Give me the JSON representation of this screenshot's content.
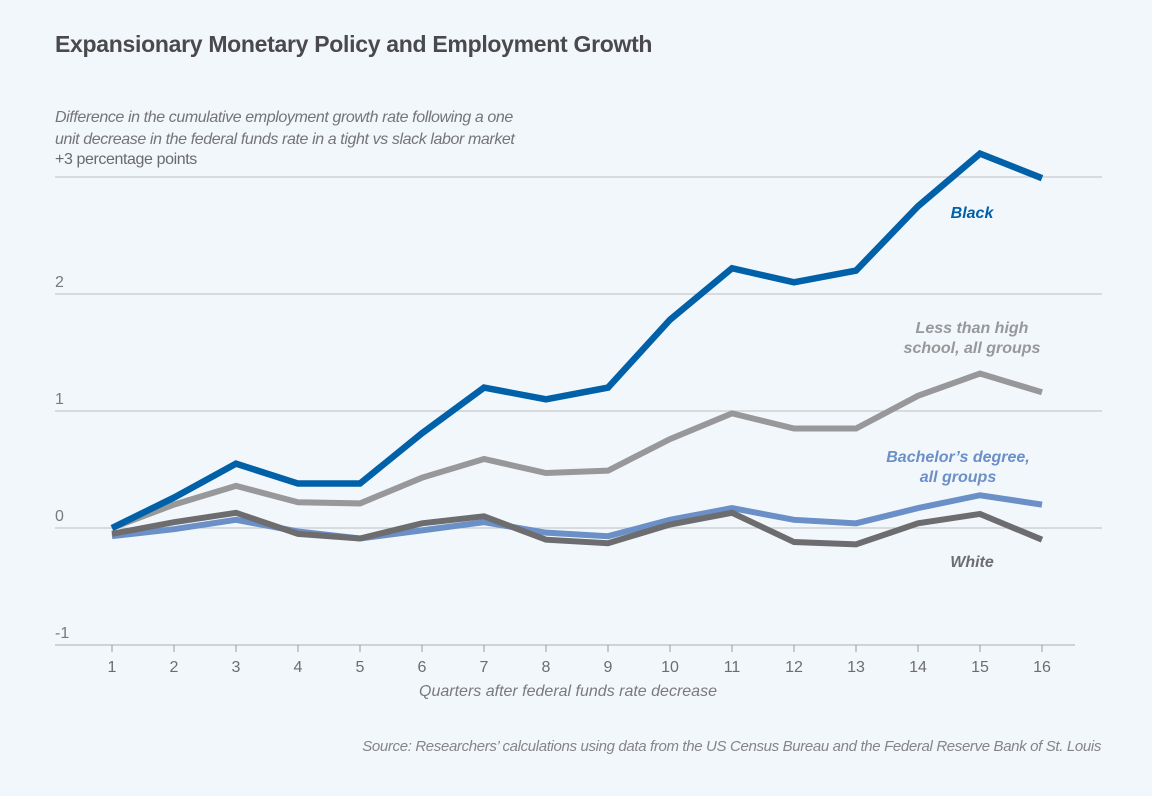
{
  "chart_data": {
    "type": "line",
    "title": "Expansionary Monetary Policy and Employment Growth",
    "subtitle": "Difference in the cumulative employment growth rate following a one unit decrease in the federal funds rate in a tight vs slack labor market",
    "subtitle_lines": [
      "Difference in the cumulative employment growth rate following a one",
      "unit decrease in the federal funds rate in a tight vs slack labor market"
    ],
    "units_label": "+3 percentage points",
    "xlabel": "Quarters after federal funds rate decrease",
    "ylabel": "",
    "x": [
      1,
      2,
      3,
      4,
      5,
      6,
      7,
      8,
      9,
      10,
      11,
      12,
      13,
      14,
      15,
      16
    ],
    "xticks": [
      "1",
      "2",
      "3",
      "4",
      "5",
      "6",
      "7",
      "8",
      "9",
      "10",
      "11",
      "12",
      "13",
      "14",
      "15",
      "16"
    ],
    "yticks": [
      {
        "value": 3,
        "label": ""
      },
      {
        "value": 2,
        "label": "2"
      },
      {
        "value": 1,
        "label": "1"
      },
      {
        "value": 0,
        "label": "0"
      },
      {
        "value": -1,
        "label": "-1"
      }
    ],
    "ylim": [
      -1,
      3
    ],
    "xlim": [
      0.3,
      16.9
    ],
    "grid": true,
    "legend": "inline-labels",
    "series": [
      {
        "name": "Less than high school, all groups",
        "label_lines": [
          "Less than high",
          "school, all groups"
        ],
        "color": "#98989b",
        "values": [
          0.0,
          0.2,
          0.36,
          0.22,
          0.21,
          0.43,
          0.59,
          0.47,
          0.49,
          0.76,
          0.98,
          0.85,
          0.85,
          1.13,
          1.32,
          1.16
        ]
      },
      {
        "name": "Bachelor's degree, all groups",
        "label_lines": [
          "Bachelor’s degree,",
          "all groups"
        ],
        "color": "#6b8fc7",
        "values": [
          -0.07,
          -0.01,
          0.07,
          -0.03,
          -0.09,
          -0.02,
          0.05,
          -0.04,
          -0.07,
          0.07,
          0.17,
          0.07,
          0.04,
          0.17,
          0.28,
          0.2
        ]
      },
      {
        "name": "White",
        "label_lines": [
          "White"
        ],
        "color": "#6d6d70",
        "values": [
          -0.05,
          0.05,
          0.13,
          -0.05,
          -0.09,
          0.04,
          0.1,
          -0.1,
          -0.13,
          0.03,
          0.13,
          -0.12,
          -0.14,
          0.04,
          0.12,
          -0.1
        ]
      },
      {
        "name": "Black",
        "label_lines": [
          "Black"
        ],
        "color": "#0060a8",
        "values": [
          0.0,
          0.26,
          0.55,
          0.38,
          0.38,
          0.81,
          1.2,
          1.1,
          1.2,
          1.78,
          2.22,
          2.1,
          2.2,
          2.75,
          3.2,
          2.99
        ]
      }
    ]
  },
  "source": "Source: Researchers’ calculations using data from the US Census Bureau and the Federal Reserve Bank of St. Louis"
}
